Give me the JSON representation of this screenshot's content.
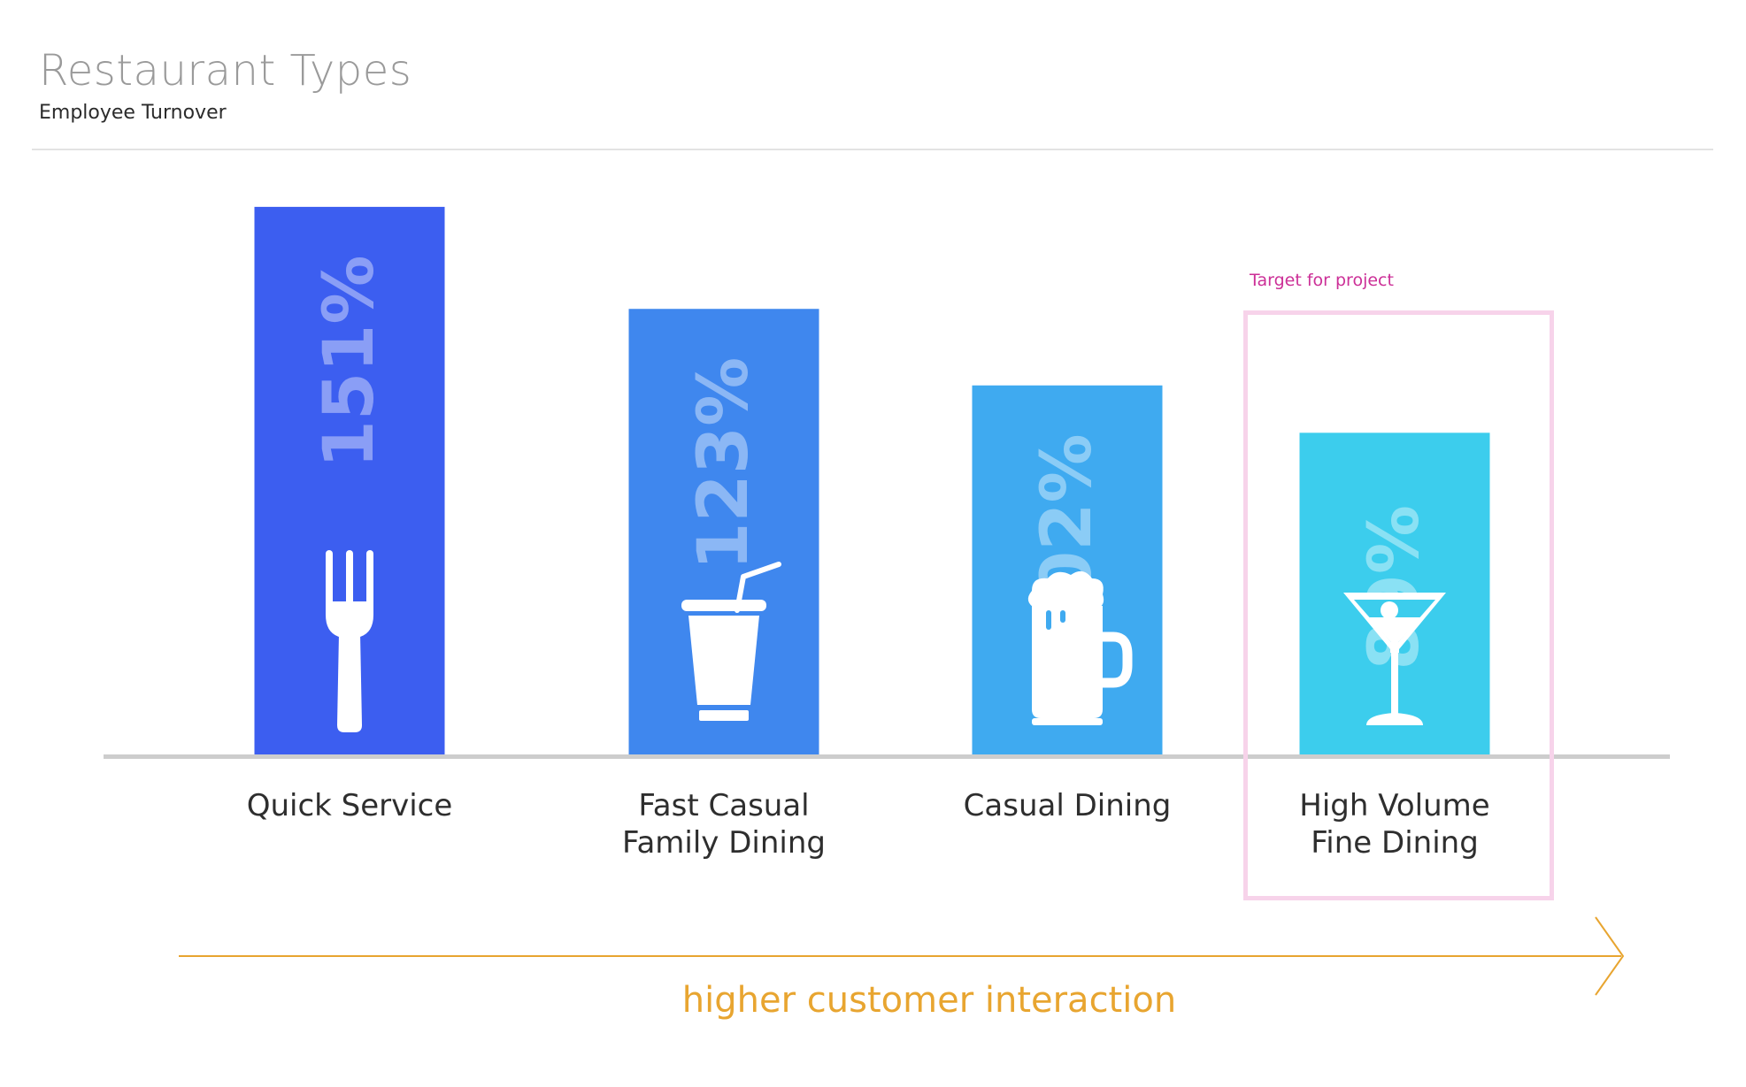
{
  "header": {
    "title": "Restaurant Types",
    "subtitle": "Employee Turnover"
  },
  "annotation": {
    "target_label": "Target for project",
    "target_category": "High Volume Fine Dining"
  },
  "axis_caption": "higher customer interaction",
  "colors": {
    "bars": [
      "#3c5ef0",
      "#3f87ee",
      "#3faaf0",
      "#3ccded"
    ],
    "value_text": "#ffffff",
    "baseline": "#cdcdcd",
    "arrow": "#e8a530",
    "target_box": "#f7d3ea",
    "target_label": "#cc2f97"
  },
  "icons": [
    "fork-icon",
    "soda-cup-icon",
    "beer-mug-icon",
    "martini-glass-icon"
  ],
  "chart_data": {
    "type": "bar",
    "categories": [
      "Quick Service",
      "Fast Casual\nFamily Dining",
      "Casual Dining",
      "High Volume\nFine Dining"
    ],
    "values": [
      151,
      123,
      102,
      89
    ],
    "value_labels": [
      "151%",
      "123%",
      "102%",
      "89%"
    ],
    "unit": "%",
    "title": "Restaurant Types",
    "subtitle": "Employee Turnover",
    "ylim": [
      0,
      160
    ],
    "grid": false,
    "legend": "none"
  }
}
